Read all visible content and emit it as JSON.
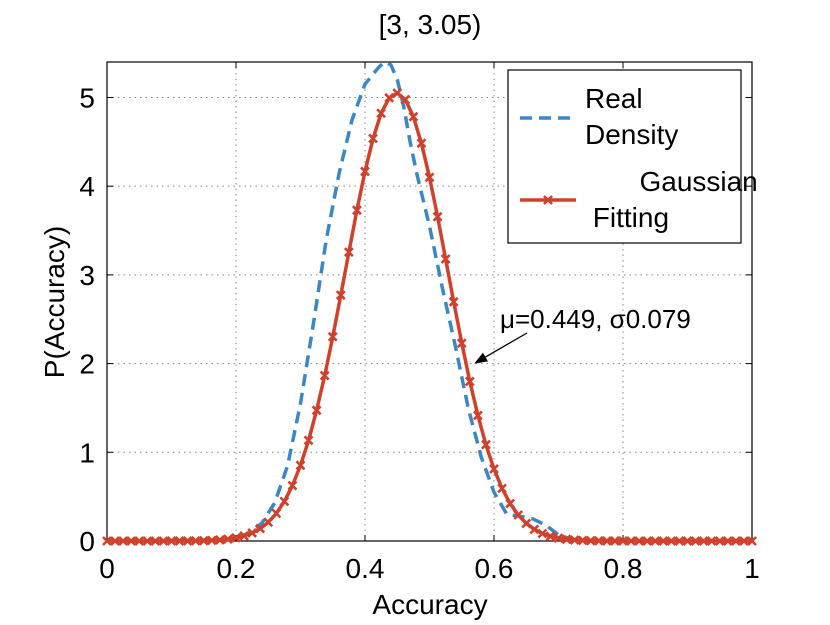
{
  "chart_data": {
    "type": "line",
    "title": "[3, 3.05)",
    "xlabel": "Accuracy",
    "ylabel": "P(Accuracy)",
    "xlim": [
      0,
      1
    ],
    "ylim": [
      0,
      5.4
    ],
    "xticks": [
      0,
      0.2,
      0.4,
      0.6,
      0.8,
      1
    ],
    "xtick_labels": [
      "0",
      "0.2",
      "0.4",
      "0.6",
      "0.8",
      "1"
    ],
    "yticks": [
      0,
      1,
      2,
      3,
      4,
      5
    ],
    "ytick_labels": [
      "0",
      "1",
      "2",
      "3",
      "4",
      "5"
    ],
    "grid": true,
    "legend": {
      "position": "top-right",
      "entries": [
        {
          "lines": [
            "Real",
            "Density"
          ]
        },
        {
          "lines": [
            "Gaussian",
            " Fitting"
          ]
        }
      ]
    },
    "annotation": {
      "text": "μ=0.449, σ0.079",
      "arrow_to": [
        0.56,
        2.0
      ]
    },
    "series": [
      {
        "name": "Real Density",
        "style": "dashed",
        "color": "#3a87c8",
        "x": [
          0,
          0.18,
          0.2,
          0.22,
          0.24,
          0.26,
          0.28,
          0.3,
          0.32,
          0.34,
          0.36,
          0.38,
          0.4,
          0.42,
          0.43,
          0.44,
          0.45,
          0.46,
          0.47,
          0.48,
          0.5,
          0.52,
          0.54,
          0.56,
          0.58,
          0.6,
          0.62,
          0.64,
          0.66,
          0.68,
          0.7,
          0.72,
          0.75,
          1
        ],
        "y": [
          0,
          0.01,
          0.03,
          0.09,
          0.2,
          0.43,
          0.85,
          1.55,
          2.45,
          3.4,
          4.15,
          4.75,
          5.15,
          5.33,
          5.4,
          5.37,
          5.2,
          4.9,
          4.5,
          4.15,
          3.55,
          2.85,
          2.2,
          1.5,
          0.95,
          0.55,
          0.3,
          0.28,
          0.25,
          0.18,
          0.07,
          0.02,
          0,
          0
        ]
      },
      {
        "name": "Gaussian Fitting",
        "style": "solid-markers",
        "color": "#d1402a",
        "mu": 0.449,
        "sigma": 0.079,
        "marker": "x",
        "x_start": 0,
        "x_step": 0.0125,
        "point_count": 81
      }
    ]
  }
}
